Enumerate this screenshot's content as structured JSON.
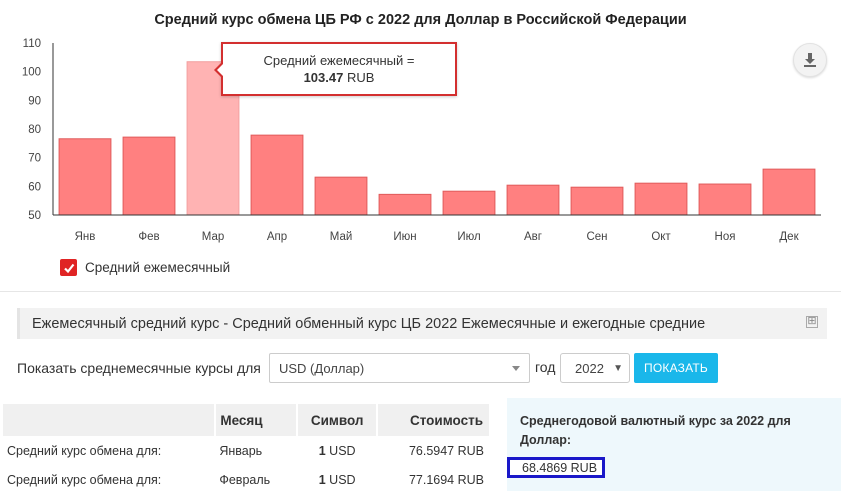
{
  "chart_data": {
    "type": "bar",
    "title": "Средний курс обмена ЦБ РФ с 2022 для Доллар в Российской Федерации",
    "categories": [
      "Янв",
      "Фев",
      "Мар",
      "Апр",
      "Май",
      "Июн",
      "Июл",
      "Авг",
      "Сен",
      "Окт",
      "Ноя",
      "Дек"
    ],
    "series": [
      {
        "name": "Средний ежемесячный",
        "values": [
          76.59,
          77.17,
          103.47,
          77.86,
          63.2,
          57.2,
          58.3,
          60.4,
          59.7,
          61.1,
          60.8,
          66.0
        ],
        "color": "#ff8080"
      }
    ],
    "ylim": [
      50,
      110
    ],
    "yticks": [
      "50",
      "60",
      "70",
      "80",
      "90",
      "100",
      "110"
    ],
    "grid": false,
    "legend": "bottom-left",
    "highlighted_index": 2,
    "highlight_color": "#ffb3b3",
    "tooltip": {
      "label": "Средний ежемесячный =",
      "value": "103.47",
      "unit": "RUB"
    }
  },
  "legend": {
    "label": "Средний ежемесячный",
    "checked": true,
    "color": "#e02424"
  },
  "download_icon": "download-icon",
  "section": {
    "title": "Ежемесячный средний курс - Средний обменный курс ЦБ 2022 Ежемесячные и ежегодные средние",
    "expand_glyph": "⊞"
  },
  "form": {
    "show_label": "Показать среднемесячные курсы для",
    "currency_value": "USD (Доллар)",
    "year_label": "год",
    "year_value": "2022",
    "submit_label": "ПОКАЗАТЬ",
    "accent_color": "#1ab7ea"
  },
  "table": {
    "headers": [
      "",
      "Месяц",
      "Символ",
      "Стоимость"
    ],
    "rows": [
      {
        "label": "Средний курс обмена для:",
        "month": "Январь",
        "symbol_amount": "1",
        "symbol_code": "USD",
        "value": "76.5947 RUB"
      },
      {
        "label": "Средний курс обмена для:",
        "month": "Февраль",
        "symbol_amount": "1",
        "symbol_code": "USD",
        "value": "77.1694 RUB"
      }
    ]
  },
  "annual": {
    "title": "Среднегодовой валютный курс за 2022 для Доллар:",
    "value": "68.4869 RUB",
    "border_color": "#1a18c9"
  }
}
